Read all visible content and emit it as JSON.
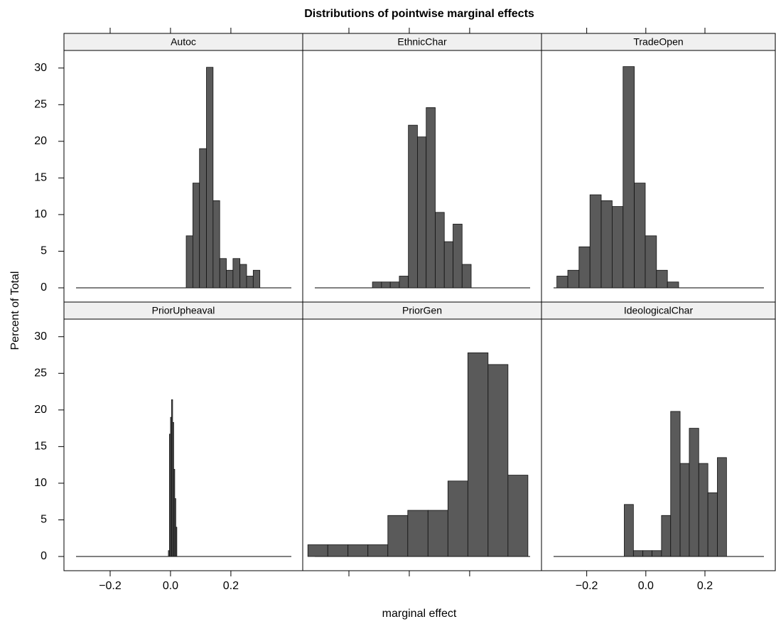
{
  "chart_data": {
    "type": "histogram",
    "title": "Distributions of pointwise marginal effects",
    "x_label": "marginal effect",
    "y_label": "Percent of Total",
    "xlim": [
      -0.353,
      0.438
    ],
    "ylim": [
      -1.94,
      32.4
    ],
    "xticks": [
      {
        "value": -0.2,
        "label": "−0.2"
      },
      {
        "value": 0,
        "label": "0.0"
      },
      0.2
    ],
    "yticks": [
      0,
      5,
      10,
      15,
      20,
      25,
      30
    ],
    "color": "#5a5a5a",
    "panels": [
      {
        "name": "Autoc",
        "bins": [
          0.052,
          0.074,
          0.096,
          0.119,
          0.141,
          0.163,
          0.185,
          0.207,
          0.23,
          0.252,
          0.274,
          0.296
        ],
        "values": [
          7.1,
          14.3,
          19,
          30.1,
          11.9,
          4,
          2.4,
          4,
          3.2,
          1.6,
          2.4
        ]
      },
      {
        "name": "EthnicChar",
        "bins": [
          -0.122,
          -0.092,
          -0.063,
          -0.033,
          -0.003,
          0.027,
          0.056,
          0.086,
          0.116,
          0.145,
          0.175,
          0.205
        ],
        "values": [
          0.8,
          0.8,
          0.8,
          1.6,
          22.2,
          20.6,
          24.6,
          10.3,
          6.3,
          8.7,
          3.2
        ]
      },
      {
        "name": "TradeOpen",
        "bins": [
          -0.301,
          -0.264,
          -0.226,
          -0.189,
          -0.151,
          -0.114,
          -0.077,
          -0.039,
          -0.002,
          0.036,
          0.073,
          0.111
        ],
        "values": [
          1.6,
          2.4,
          5.6,
          12.7,
          11.9,
          11.1,
          30.2,
          14.3,
          7.1,
          2.4,
          0.8
        ]
      },
      {
        "name": "PriorUpheaval",
        "bins": [
          -0.007,
          -0.0035,
          0,
          0.0035,
          0.007,
          0.0105,
          0.014,
          0.0175,
          0.021
        ],
        "values": [
          0.8,
          16.7,
          19,
          21.4,
          18.3,
          11.9,
          7.9,
          4
        ]
      },
      {
        "name": "PriorGen",
        "bins": [
          -0.336,
          -0.27,
          -0.203,
          -0.137,
          -0.071,
          -0.005,
          0.062,
          0.128,
          0.194,
          0.261,
          0.327,
          0.393
        ],
        "values": [
          1.6,
          1.6,
          1.6,
          1.6,
          5.6,
          6.3,
          6.3,
          10.3,
          27.8,
          26.2,
          11.1
        ]
      },
      {
        "name": "IdeologicalChar",
        "bins": [
          -0.073,
          -0.042,
          -0.01,
          0.021,
          0.053,
          0.084,
          0.116,
          0.147,
          0.179,
          0.21,
          0.242,
          0.273
        ],
        "values": [
          7.1,
          0.8,
          0.8,
          0.8,
          5.6,
          19.8,
          12.7,
          17.5,
          12.7,
          8.7,
          13.5
        ]
      }
    ]
  }
}
